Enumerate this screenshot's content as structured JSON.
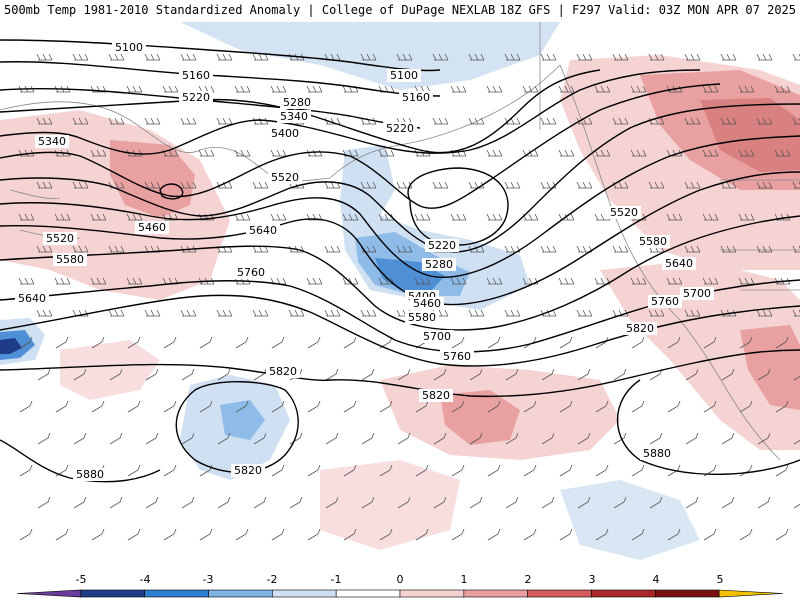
{
  "header": {
    "left_title": "500mb Temp 1981-2010 Standardized Anomaly | College of DuPage NEXLAB",
    "right_title": "18Z GFS | F297 Valid: 03Z MON APR 07 2025"
  },
  "contours": {
    "c5100": "5100",
    "c5160": "5160",
    "c5220": "5220",
    "c5280": "5280",
    "c5340": "5340",
    "c5400": "5400",
    "c5460": "5460",
    "c5520": "5520",
    "c5580": "5580",
    "c5640": "5640",
    "c5700": "5700",
    "c5760": "5760",
    "c5820": "5820",
    "c5880": "5880"
  },
  "colorbar": {
    "ticks": [
      "-5",
      "-4",
      "-3",
      "-2",
      "-1",
      "0",
      "1",
      "2",
      "3",
      "4",
      "5"
    ],
    "colors": {
      "neg5": "#6a3d9a",
      "neg4": "#1f3c88",
      "neg3": "#2f7fd0",
      "neg2": "#7fb2e5",
      "neg1": "#cfe0f2",
      "zero": "#ffffff",
      "pos1": "#f6d3d3",
      "pos2": "#e8a0a0",
      "pos3": "#d45c5c",
      "pos4": "#a82828",
      "pos5": "#f2c200"
    }
  }
}
